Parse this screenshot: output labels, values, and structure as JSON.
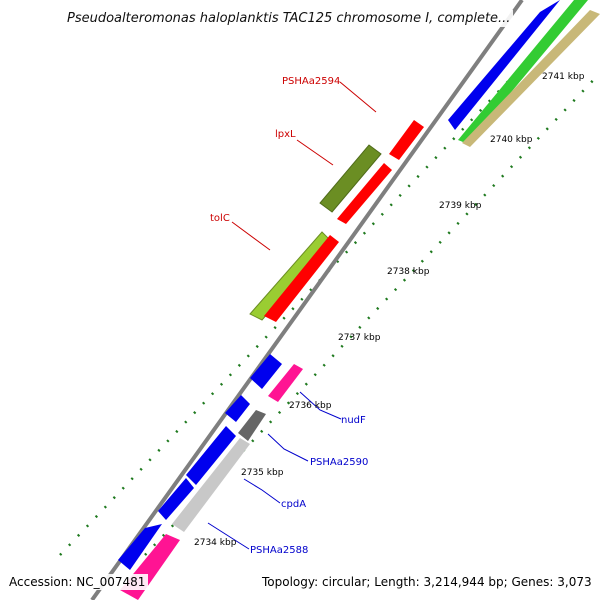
{
  "title": "Pseudoalteromonas haloplanktis TAC125 chromosome I, complete...",
  "footer": {
    "accession": "Accession: NC_007481",
    "summary": "Topology: circular; Length: 3,214,944 bp; Genes: 3,073"
  },
  "colors": {
    "backbone": "#7f7f7f",
    "cds_blue": "#0000ee",
    "cds_red": "#ff0000",
    "olive": "#6b8e23",
    "lime": "#9acd32",
    "green": "#33cc33",
    "tan": "#c8b878",
    "magenta": "#ff1493",
    "gray_feature": "#c8c8c8",
    "dark_gray": "#666666",
    "ticks": "#1f7a1f",
    "label_red": "#cc0000",
    "label_blue": "#0000cc"
  },
  "scale_labels": [
    "2741 kbp",
    "2740 kbp",
    "2739 kbp",
    "2738 kbp",
    "2737 kbp",
    "2736 kbp",
    "2735 kbp",
    "2734 kbp"
  ],
  "gene_labels": {
    "PSHAa2594": "PSHAa2594",
    "lpxL": "lpxL",
    "tolC": "tolC",
    "nudF": "nudF",
    "PSHAa2590": "PSHAa2590",
    "cpdA": "cpdA",
    "PSHAa2588": "PSHAa2588"
  }
}
